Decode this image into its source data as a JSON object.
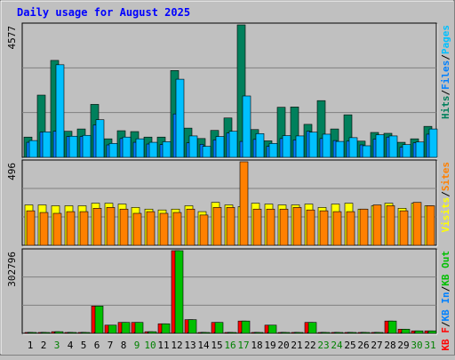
{
  "chart_data": [
    {
      "type": "bar",
      "title": "Daily usage for August 2025",
      "ymax_label": "4577",
      "ylim": [
        0,
        4577
      ],
      "legend": [
        {
          "text": "Hits",
          "color": "#00805c"
        },
        {
          "text": "/",
          "color": "#000000"
        },
        {
          "text": "Files",
          "color": "#0080ff"
        },
        {
          "text": "/",
          "color": "#000000"
        },
        {
          "text": "Pages",
          "color": "#00c0ff"
        }
      ],
      "series": [
        {
          "name": "Hits",
          "color": "#00805c",
          "values": [
            700,
            2150,
            3350,
            900,
            980,
            1830,
            640,
            920,
            890,
            700,
            700,
            3000,
            1010,
            650,
            930,
            1360,
            4577,
            960,
            570,
            1730,
            1740,
            1140,
            1960,
            980,
            1470,
            560,
            860,
            830,
            520,
            640,
            1070
          ]
        },
        {
          "name": "Files",
          "color": "#0080ff",
          "values": [
            520,
            870,
            900,
            720,
            720,
            1120,
            430,
            650,
            520,
            460,
            440,
            1500,
            500,
            450,
            600,
            840,
            550,
            620,
            380,
            650,
            600,
            900,
            650,
            580,
            560,
            430,
            630,
            700,
            350,
            500,
            800
          ]
        },
        {
          "name": "Pages",
          "color": "#00c0ff",
          "values": [
            580,
            880,
            3200,
            730,
            760,
            1300,
            480,
            700,
            640,
            520,
            540,
            2700,
            740,
            380,
            720,
            900,
            2120,
            820,
            480,
            750,
            740,
            870,
            800,
            550,
            680,
            400,
            780,
            740,
            440,
            530,
            980
          ]
        }
      ]
    },
    {
      "type": "bar",
      "ymax_label": "496",
      "ylim": [
        0,
        496
      ],
      "legend": [
        {
          "text": "Visits",
          "color": "#ffff00"
        },
        {
          "text": "/",
          "color": "#000000"
        },
        {
          "text": "Sites",
          "color": "#ff8000"
        }
      ],
      "series": [
        {
          "name": "Visits",
          "color": "#ffff00",
          "values": [
            240,
            240,
            235,
            235,
            235,
            250,
            250,
            245,
            225,
            215,
            210,
            215,
            235,
            200,
            255,
            240,
            230,
            250,
            245,
            240,
            240,
            245,
            225,
            245,
            250,
            215,
            235,
            250,
            220,
            250,
            235
          ]
        },
        {
          "name": "Sites",
          "color": "#ff8000",
          "values": [
            205,
            195,
            190,
            200,
            200,
            220,
            225,
            215,
            190,
            200,
            190,
            195,
            215,
            180,
            225,
            225,
            496,
            215,
            215,
            215,
            225,
            210,
            205,
            200,
            200,
            215,
            240,
            235,
            205,
            255,
            235
          ]
        }
      ]
    },
    {
      "type": "bar",
      "ymax_label": "302796",
      "ylim": [
        0,
        302796
      ],
      "legend": [
        {
          "text": "KB F",
          "color": "#ff0000"
        },
        {
          "text": "/",
          "color": "#000000"
        },
        {
          "text": "KB In",
          "color": "#0080ff"
        },
        {
          "text": "/",
          "color": "#000000"
        },
        {
          "text": "KB Out",
          "color": "#00c000"
        }
      ],
      "series": [
        {
          "name": "KB F",
          "color": "#ff0000",
          "values": [
            3000,
            3000,
            6000,
            3000,
            3000,
            100000,
            30000,
            40000,
            40000,
            6000,
            35000,
            302796,
            50000,
            3000,
            40000,
            3000,
            45000,
            3000,
            30000,
            3000,
            3000,
            40000,
            3000,
            3000,
            3000,
            3000,
            3000,
            45000,
            15000,
            9000,
            9000
          ]
        },
        {
          "name": "KB In",
          "color": "#0080ff",
          "values": [
            0,
            0,
            0,
            0,
            0,
            0,
            0,
            0,
            0,
            0,
            0,
            0,
            0,
            0,
            0,
            0,
            0,
            0,
            0,
            0,
            0,
            0,
            0,
            0,
            0,
            0,
            0,
            0,
            0,
            0,
            0
          ]
        },
        {
          "name": "KB Out",
          "color": "#00c000",
          "values": [
            3000,
            3000,
            6000,
            3000,
            3000,
            100000,
            30000,
            40000,
            40000,
            6000,
            35000,
            302796,
            50000,
            3000,
            40000,
            3000,
            45000,
            3000,
            30000,
            3000,
            3000,
            40000,
            3000,
            3000,
            3000,
            3000,
            3000,
            45000,
            15000,
            9000,
            9000
          ]
        }
      ]
    }
  ],
  "x_labels": [
    "1",
    "2",
    "3",
    "4",
    "5",
    "6",
    "7",
    "8",
    "9",
    "10",
    "11",
    "12",
    "13",
    "14",
    "15",
    "16",
    "17",
    "18",
    "19",
    "20",
    "21",
    "22",
    "23",
    "24",
    "25",
    "26",
    "27",
    "28",
    "29",
    "30",
    "31"
  ],
  "weekend_days": [
    3,
    9,
    10,
    16,
    17,
    23,
    24,
    30,
    31
  ],
  "colors": {
    "title": "#0000ff",
    "weekday_label": "#000000",
    "weekend_label": "#008000",
    "plot_bg": "#c0c0c0",
    "outer_bg": "#c0c0c0",
    "grid": "#808080"
  }
}
